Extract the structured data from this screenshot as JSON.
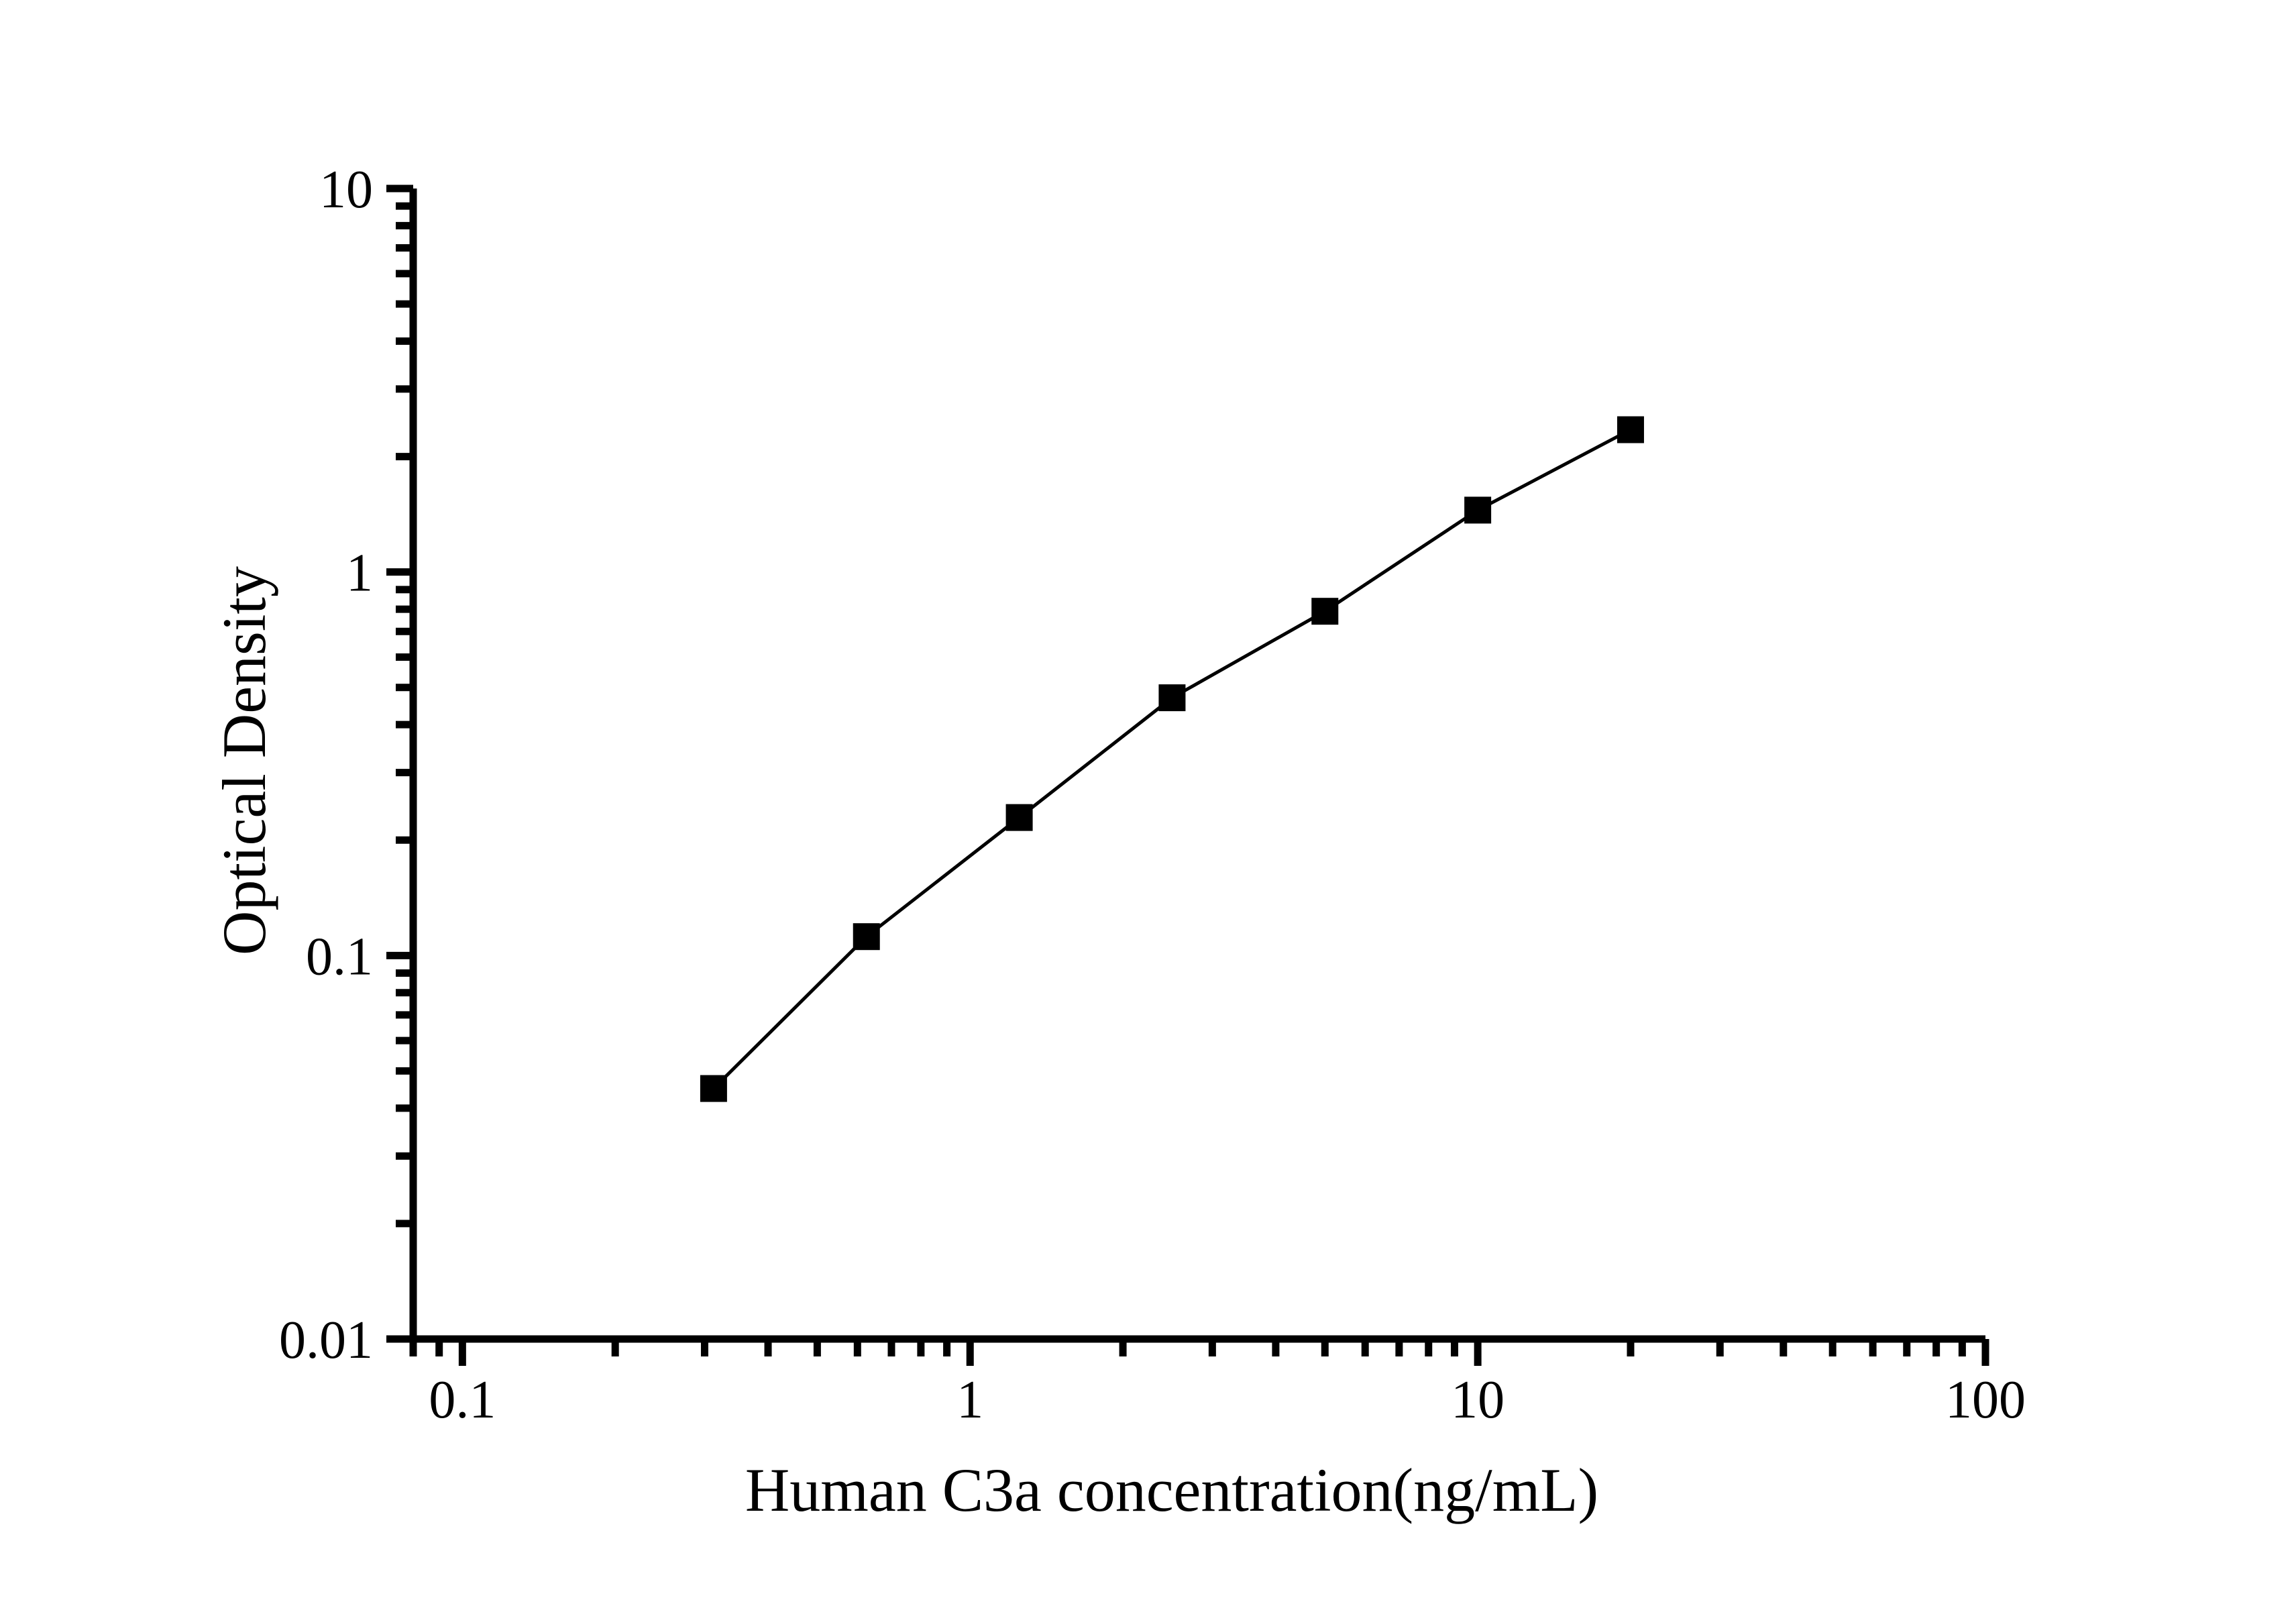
{
  "chart_data": {
    "type": "line",
    "title": "",
    "xlabel": "Human C3a concentration(ng/mL)",
    "ylabel": "Optical Density",
    "x_scale": "log",
    "y_scale": "log",
    "xlim": [
      0.08,
      100
    ],
    "ylim": [
      0.01,
      10
    ],
    "x_major_ticks": [
      0.1,
      1,
      10,
      100
    ],
    "x_tick_labels": [
      "0.1",
      "1",
      "10",
      "100"
    ],
    "y_major_ticks": [
      10,
      1,
      0.1,
      0.01
    ],
    "y_tick_labels": [
      "10",
      "1",
      "0.1",
      "0.01"
    ],
    "grid": false,
    "legend_position": "none",
    "axes_drawn": [
      "left",
      "bottom"
    ],
    "series": [
      {
        "marker": "filled-square",
        "marker_color": "#000000",
        "line_color": "#000000",
        "x": [
          0.3125,
          0.625,
          1.25,
          2.5,
          5,
          10,
          20
        ],
        "y": [
          0.045,
          0.112,
          0.229,
          0.47,
          0.79,
          1.45,
          2.35
        ]
      }
    ]
  }
}
